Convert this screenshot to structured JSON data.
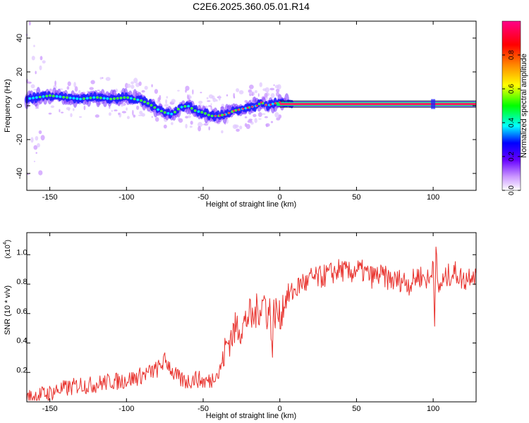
{
  "figure": {
    "title": "C2E6.2025.360.05.01.R14"
  },
  "chart_data": [
    {
      "type": "heatmap",
      "title": "C2E6.2025.360.05.01.R14",
      "xlabel": "Height of straight line (km)",
      "ylabel": "Frequency (Hz)",
      "xlim": [
        -165,
        128
      ],
      "ylim": [
        -50,
        50
      ],
      "xticks": [
        "-150",
        "-100",
        "-50",
        "0",
        "50",
        "100"
      ],
      "yticks": [
        "-40",
        "-20",
        "0",
        "20",
        "40"
      ],
      "grid": false,
      "ridge": {
        "description": "peak frequency track (normalized amplitude ~0.5 in scatter region, ~0.95 on constant segment)",
        "x": [
          -165,
          -158,
          -150,
          -140,
          -130,
          -120,
          -110,
          -100,
          -95,
          -90,
          -85,
          -80,
          -75,
          -70,
          -65,
          -60,
          -55,
          -50,
          -45,
          -40,
          -35,
          -30,
          -25,
          -20,
          -15,
          -12,
          -10,
          -8,
          -5,
          0,
          5,
          10,
          20,
          50,
          100,
          128
        ],
        "y": [
          4,
          5,
          6,
          5,
          4,
          5,
          4,
          5,
          4,
          3,
          1,
          -2,
          -4,
          -5,
          -1,
          0,
          -3,
          -4,
          -6,
          -6,
          -5,
          -3,
          -2,
          -1,
          0,
          2,
          1,
          0,
          1,
          2,
          2,
          1,
          1,
          1,
          1,
          1
        ]
      },
      "colorbar": {
        "label": "Normalized spectral amplitude",
        "ticks": [
          "0.0",
          "0.2",
          "0.4",
          "0.6",
          "0.8"
        ],
        "range": [
          0,
          1
        ],
        "colors": [
          "#ffffff",
          "#cc99ff",
          "#6600ff",
          "#0000ff",
          "#00ffff",
          "#00ff00",
          "#ffff00",
          "#ff8800",
          "#ff0000",
          "#ff0088"
        ]
      }
    },
    {
      "type": "line",
      "xlabel": "Height of straight line (km)",
      "ylabel": "SNR (10 * v/v)",
      "yscale_note": "(x10",
      "yscale_exp": "4",
      "xlim": [
        -165,
        128
      ],
      "ylim": [
        0,
        1.15
      ],
      "xticks": [
        "-150",
        "-100",
        "-50",
        "0",
        "50",
        "100"
      ],
      "yticks": [
        "0.2",
        "0.4",
        "0.6",
        "0.8",
        "1.0"
      ],
      "color": "#e8322d",
      "series": [
        {
          "x": [
            -165,
            -160,
            -155,
            -150,
            -145,
            -140,
            -135,
            -130,
            -125,
            -120,
            -115,
            -110,
            -105,
            -100,
            -95,
            -90,
            -85,
            -80,
            -75,
            -72,
            -70,
            -65,
            -60,
            -55,
            -50,
            -45,
            -42,
            -40,
            -38,
            -35,
            -33,
            -30,
            -28,
            -25,
            -22,
            -20,
            -18,
            -15,
            -12,
            -10,
            -8,
            -6,
            -5,
            -4,
            -2,
            0,
            2,
            5,
            8,
            10,
            12,
            15,
            18,
            20,
            25,
            30,
            35,
            40,
            45,
            50,
            55,
            60,
            65,
            70,
            75,
            80,
            85,
            90,
            95,
            98,
            100,
            101,
            102,
            103,
            105,
            110,
            115,
            120,
            125,
            128
          ],
          "y": [
            0.02,
            0.04,
            0.05,
            0.06,
            0.08,
            0.09,
            0.1,
            0.12,
            0.11,
            0.12,
            0.13,
            0.14,
            0.14,
            0.15,
            0.16,
            0.18,
            0.2,
            0.22,
            0.28,
            0.25,
            0.2,
            0.15,
            0.14,
            0.16,
            0.14,
            0.14,
            0.2,
            0.18,
            0.26,
            0.38,
            0.42,
            0.47,
            0.52,
            0.5,
            0.55,
            0.6,
            0.55,
            0.62,
            0.65,
            0.7,
            0.58,
            0.64,
            0.3,
            0.6,
            0.62,
            0.56,
            0.66,
            0.72,
            0.74,
            0.76,
            0.78,
            0.82,
            0.8,
            0.84,
            0.84,
            0.86,
            0.88,
            0.9,
            0.87,
            0.9,
            0.88,
            0.85,
            0.86,
            0.84,
            0.82,
            0.83,
            0.8,
            0.86,
            0.84,
            0.82,
            0.98,
            0.6,
            1.05,
            0.75,
            0.8,
            0.86,
            0.88,
            0.82,
            0.88,
            0.86
          ]
        }
      ]
    }
  ]
}
